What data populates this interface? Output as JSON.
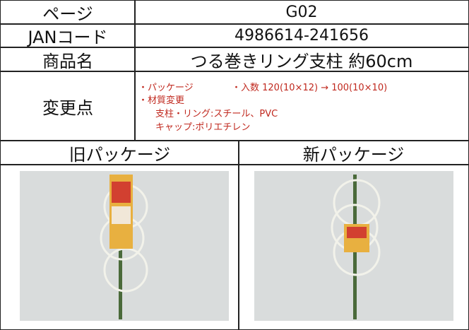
{
  "rows": [
    {
      "label": "ページ",
      "value": "G02"
    },
    {
      "label": "JANコード",
      "value": "4986614-241656"
    },
    {
      "label": "商品名",
      "value": "つる巻きリング支柱 約60cm"
    }
  ],
  "changes": {
    "label": "変更点",
    "items": [
      "・パッケージ",
      "・入数 120(10×12) → 100(10×10)",
      "・材質変更",
      "支柱・リング:スチール、PVC",
      "キャップ:ポリエチレン"
    ]
  },
  "photos": {
    "old": "旧パッケージ",
    "new": "新パッケージ"
  }
}
